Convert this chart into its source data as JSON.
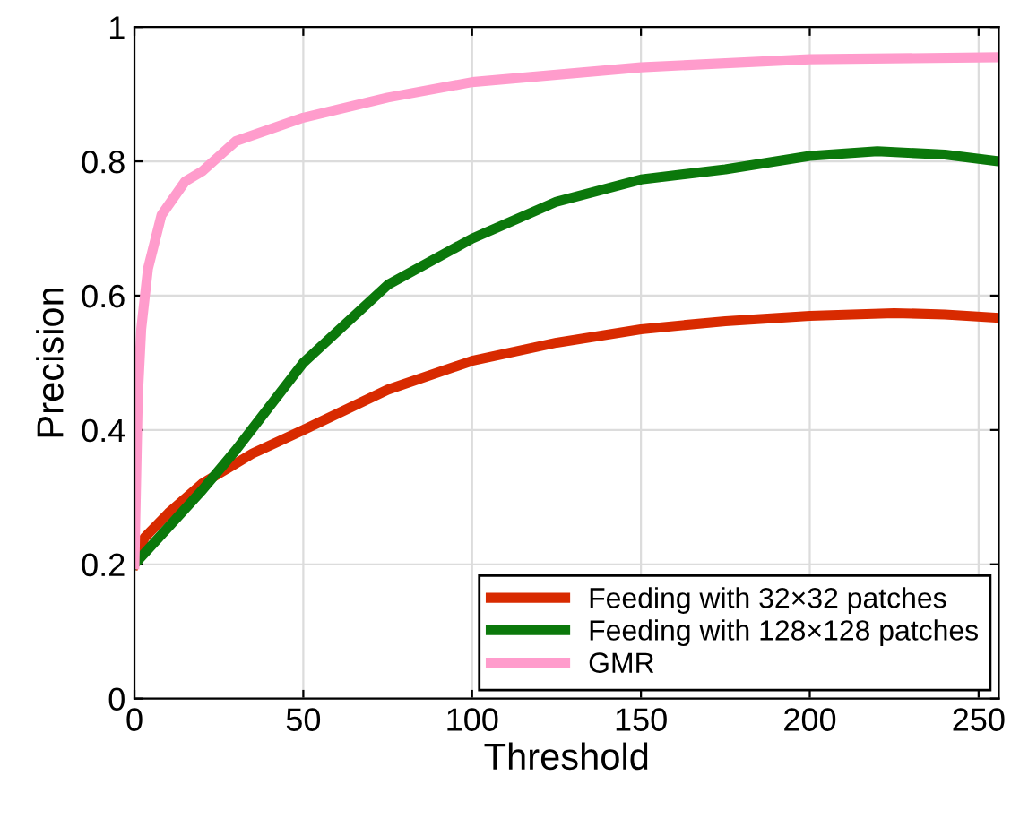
{
  "chart_data": {
    "type": "line",
    "xlabel": "Threshold",
    "ylabel": "Precision",
    "xlim": [
      0,
      256
    ],
    "ylim": [
      0,
      1
    ],
    "xticks": [
      0,
      50,
      100,
      150,
      200,
      250
    ],
    "yticks": [
      0,
      0.2,
      0.4,
      0.6,
      0.8,
      1
    ],
    "grid": true,
    "legend": "bottom right",
    "line_style": "solid",
    "marker": "none",
    "series": [
      {
        "name": "Feeding with 32×32 patches",
        "color": "#d82a00",
        "x": [
          0,
          3,
          10,
          20,
          35,
          50,
          75,
          100,
          125,
          150,
          175,
          200,
          225,
          240,
          256
        ],
        "values": [
          0.2,
          0.24,
          0.276,
          0.32,
          0.365,
          0.4,
          0.46,
          0.503,
          0.53,
          0.55,
          0.562,
          0.57,
          0.574,
          0.572,
          0.567
        ]
      },
      {
        "name": "Feeding with 128×128 patches",
        "color": "#0b780b",
        "x": [
          0,
          10,
          20,
          30,
          50,
          75,
          100,
          125,
          150,
          175,
          200,
          220,
          240,
          256
        ],
        "values": [
          0.2,
          0.255,
          0.31,
          0.37,
          0.5,
          0.616,
          0.685,
          0.74,
          0.773,
          0.788,
          0.808,
          0.815,
          0.81,
          0.8
        ]
      },
      {
        "name": "GMR",
        "color": "#ff9ccc",
        "x": [
          0,
          1,
          2,
          4,
          8,
          15,
          20,
          30,
          50,
          75,
          100,
          150,
          200,
          256
        ],
        "values": [
          0.2,
          0.45,
          0.55,
          0.64,
          0.72,
          0.77,
          0.785,
          0.83,
          0.865,
          0.895,
          0.918,
          0.94,
          0.952,
          0.955
        ]
      }
    ]
  }
}
